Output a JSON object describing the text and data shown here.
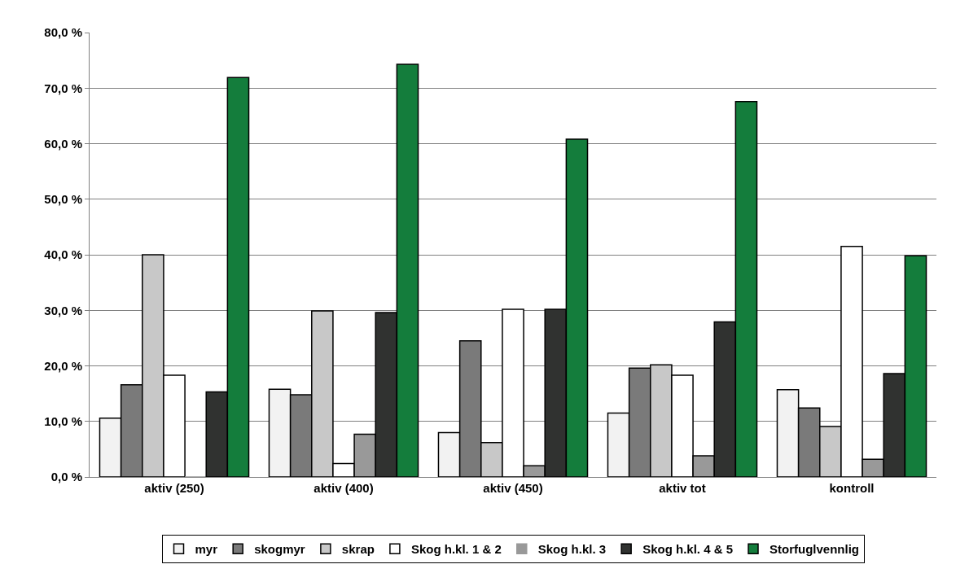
{
  "chart_data": {
    "type": "bar",
    "categories": [
      "aktiv (250)",
      "aktiv (400)",
      "aktiv (450)",
      "aktiv tot",
      "kontroll"
    ],
    "series": [
      {
        "name": "myr",
        "color": "#f2f2f2",
        "values": [
          10.6,
          15.8,
          8.0,
          11.5,
          15.7
        ]
      },
      {
        "name": "skogmyr",
        "color": "#7a7a7a",
        "values": [
          16.6,
          14.8,
          24.5,
          19.6,
          12.4
        ]
      },
      {
        "name": "skrap",
        "color": "#c8c8c8",
        "values": [
          40.0,
          29.9,
          6.2,
          20.2,
          9.1
        ]
      },
      {
        "name": "Skog h.kl. 1 & 2",
        "color": "#ffffff",
        "values": [
          18.3,
          2.4,
          30.2,
          18.3,
          41.5
        ]
      },
      {
        "name": "Skog h.kl. 3",
        "color": "#999999",
        "values": [
          0.0,
          7.7,
          2.0,
          3.8,
          3.2
        ]
      },
      {
        "name": "Skog h.kl. 4 & 5",
        "color": "#303230",
        "values": [
          15.3,
          29.6,
          30.2,
          27.9,
          18.6
        ]
      },
      {
        "name": "Storfuglvennlig",
        "color": "#147d3c",
        "values": [
          71.9,
          74.3,
          60.8,
          67.6,
          39.8
        ]
      }
    ],
    "ylim": [
      0,
      80
    ],
    "yticks": [
      {
        "value": 0,
        "label": "0,0 %"
      },
      {
        "value": 10,
        "label": "10,0 %"
      },
      {
        "value": 20,
        "label": "20,0 %"
      },
      {
        "value": 30,
        "label": "30,0 %"
      },
      {
        "value": 40,
        "label": "40,0 %"
      },
      {
        "value": 50,
        "label": "50,0 %"
      },
      {
        "value": 60,
        "label": "60,0 %"
      },
      {
        "value": 70,
        "label": "70,0 %"
      },
      {
        "value": 80,
        "label": "80,0 %"
      }
    ],
    "grid": "y",
    "legend": "bottom"
  }
}
